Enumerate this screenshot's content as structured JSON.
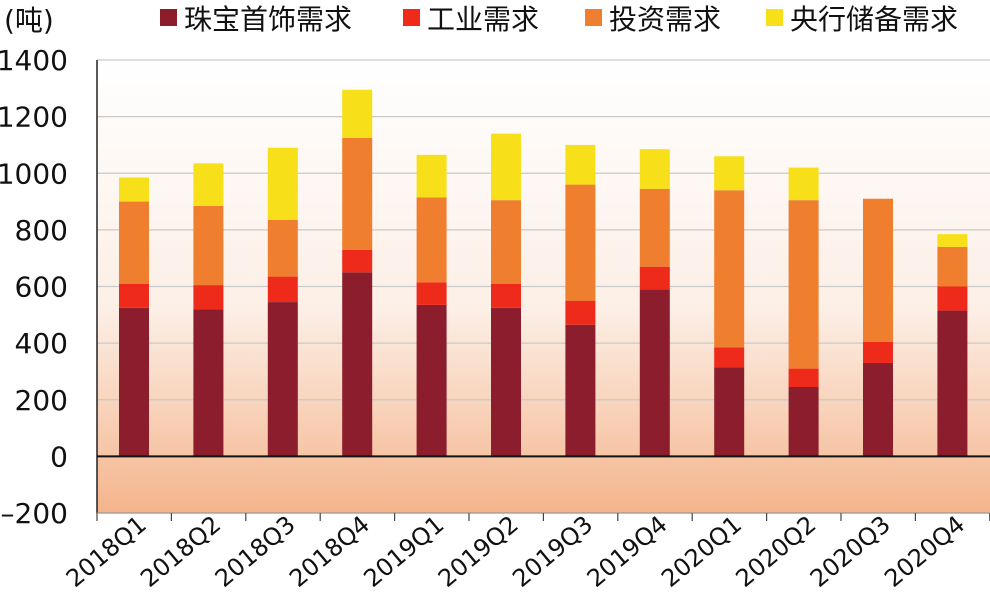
{
  "chart_data": {
    "type": "bar",
    "stacked": true,
    "unit_label": "(吨)",
    "categories": [
      "2018Q1",
      "2018Q2",
      "2018Q3",
      "2018Q4",
      "2019Q1",
      "2019Q2",
      "2019Q3",
      "2019Q4",
      "2020Q1",
      "2020Q2",
      "2020Q3",
      "2020Q4"
    ],
    "series": [
      {
        "name": "珠宝首饰需求",
        "color": "#8b1d2c",
        "values": [
          525,
          520,
          545,
          650,
          535,
          525,
          465,
          590,
          315,
          245,
          330,
          515
        ]
      },
      {
        "name": "工业需求",
        "color": "#ee2a1b",
        "values": [
          85,
          85,
          90,
          80,
          80,
          85,
          85,
          80,
          70,
          65,
          75,
          85
        ]
      },
      {
        "name": "投资需求",
        "color": "#ef7f2e",
        "values": [
          290,
          280,
          200,
          395,
          300,
          295,
          410,
          275,
          555,
          595,
          505,
          140
        ]
      },
      {
        "name": "央行储备需求",
        "color": "#f7e019",
        "values": [
          85,
          150,
          255,
          170,
          150,
          235,
          140,
          140,
          120,
          115,
          0,
          45
        ]
      }
    ],
    "ylim": [
      -200,
      1400
    ],
    "yticks": [
      -200,
      0,
      200,
      400,
      600,
      800,
      1000,
      1200,
      1400
    ],
    "tick_labels": [
      "–200",
      "0",
      "200",
      "400",
      "600",
      "800",
      "1000",
      "1200",
      "1400"
    ],
    "grid": true,
    "legend_position": "top"
  }
}
